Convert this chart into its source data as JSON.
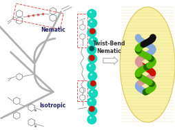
{
  "background_color": "#ffffff",
  "fig_width": 2.55,
  "fig_height": 1.89,
  "dpi": 100,
  "nematic_label": "Nematic",
  "isotropic_label": "Isotropic",
  "twist_bend_label": "Twist-Bend\nNematic",
  "arrow_color": "#b0b0b0",
  "molecule_box_color": "#e05858",
  "line_color": "#888888",
  "cyan_color": "#00d4b8",
  "red_color": "#cc1100",
  "dark_teal_color": "#005555",
  "green_color": "#55bb00",
  "dark_green_color": "#226600",
  "blue_color": "#88aadd",
  "pink_color": "#dd9999",
  "black_color": "#111111",
  "ellipse_fill": "#f8f0a0",
  "ellipse_edge": "#d8c860",
  "label_fontsize": 5.5,
  "label_color": "#222266",
  "twist_label_color": "#333333"
}
